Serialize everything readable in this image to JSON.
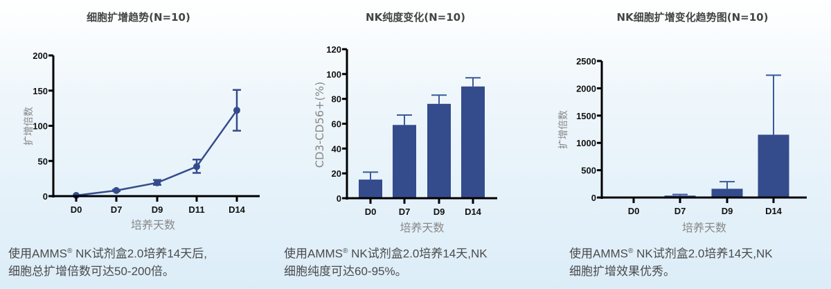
{
  "colors": {
    "series": "#344b8c",
    "axis": "#000000",
    "title": "#444444",
    "caption": "#4a4a4a",
    "axis_title": "#888888"
  },
  "panels": [
    {
      "title": "细胞扩增趋势(N=10)",
      "caption_line1_prefix": "使用AMMS",
      "caption_reg": "®",
      "caption_line1_suffix": " NK试剂盒2.0培养14天后,",
      "caption_line2": "细胞总扩增倍数可达50-200倍。"
    },
    {
      "title": "NK纯度变化(N=10)",
      "caption_line1_prefix": "使用AMMS",
      "caption_reg": "®",
      "caption_line1_suffix": " NK试剂盒2.0培养14天,NK",
      "caption_line2": "细胞纯度可达60-95%。"
    },
    {
      "title": "NK细胞扩增变化趋势图(N=10)",
      "caption_line1_prefix": "使用AMMS",
      "caption_reg": "®",
      "caption_line1_suffix": " NK试剂盒2.0培养14天,NK",
      "caption_line2": "细胞扩增效果优秀。"
    }
  ],
  "chart_data": [
    {
      "type": "line",
      "title": "细胞扩增趋势(N=10)",
      "xlabel": "培养天数",
      "ylabel": "扩增倍数",
      "categories": [
        "D0",
        "D7",
        "D9",
        "D11",
        "D14"
      ],
      "values": [
        1,
        8,
        19,
        42,
        122
      ],
      "error_low": [
        1,
        7,
        16,
        33,
        93
      ],
      "error_high": [
        1,
        9,
        23,
        52,
        151
      ],
      "yticks": [
        0,
        50,
        100,
        150,
        200
      ],
      "ylim": [
        0,
        200
      ],
      "grid": false,
      "legend": null
    },
    {
      "type": "bar",
      "title": "NK纯度变化(N=10)",
      "xlabel": "培养天数",
      "ylabel": "CD3-CD56+(%)",
      "categories": [
        "D0",
        "D7",
        "D9",
        "D14"
      ],
      "values": [
        15,
        59,
        76,
        90
      ],
      "error_high": [
        21,
        67,
        83,
        97
      ],
      "yticks": [
        0,
        20,
        40,
        60,
        80,
        100,
        120
      ],
      "ylim": [
        0,
        120
      ],
      "grid": false,
      "legend": null
    },
    {
      "type": "bar",
      "title": "NK细胞扩增变化趋势图(N=10)",
      "xlabel": "培养天数",
      "ylabel": "扩增倍数",
      "categories": [
        "D0",
        "D7",
        "D9",
        "D14"
      ],
      "values": [
        0,
        35,
        160,
        1150
      ],
      "error_high": [
        0,
        55,
        290,
        2240
      ],
      "yticks": [
        0,
        500,
        1000,
        1500,
        2000,
        2500
      ],
      "ylim": [
        0,
        2500
      ],
      "grid": false,
      "legend": null
    }
  ]
}
